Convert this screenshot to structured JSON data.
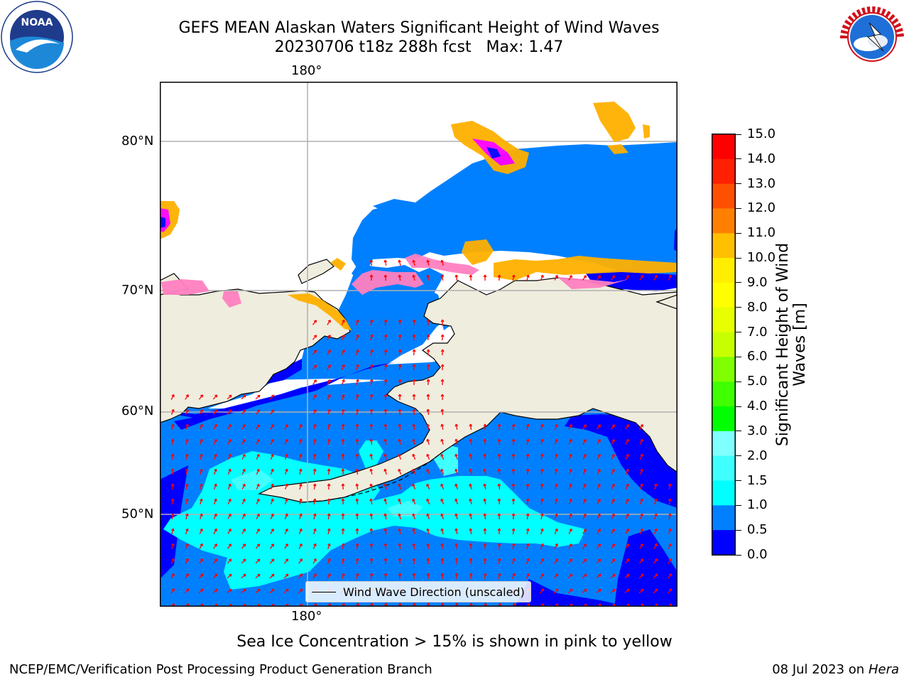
{
  "title": {
    "line1": "GEFS MEAN Alaskan Waters Significant Height of Wind Waves",
    "line2": "20230706 t18z 288h fcst   Max: 1.47"
  },
  "logos": {
    "noaa": {
      "center_text": "NOAA",
      "ring_text": "NATIONAL OCEANIC AND ATMOSPHERIC ADMINISTRATION · U.S. DEPARTMENT OF COMMERCE"
    },
    "nws": {
      "ring_text": "NATIONAL WEATHER SERVICE"
    }
  },
  "map": {
    "top_lon_label": "180°",
    "bottom_lon_label": "180°",
    "lat_labels": [
      "80°N",
      "70°N",
      "60°N",
      "50°N"
    ],
    "legend_label": "Wind Wave Direction (unscaled)",
    "colors": {
      "land": "#efedde",
      "ocean_0_0p5": "#0000ff",
      "ocean_0p5_1": "#0080ff",
      "ocean_1_1p5": "#00ffff",
      "ocean_1p5_2": "#40ffff",
      "arrows": "#ff0000",
      "ice": [
        "#ff00ff",
        "#ff80c0",
        "#ffb000",
        "#ffff00"
      ]
    }
  },
  "colorbar": {
    "label_line1": "Significant Height of Wind",
    "label_line2": "Waves [m]",
    "ticks": [
      "15.0",
      "14.0",
      "13.0",
      "12.0",
      "11.0",
      "10.0",
      "9.0",
      "8.0",
      "7.0",
      "6.0",
      "5.0",
      "4.0",
      "3.0",
      "2.0",
      "1.5",
      "1.0",
      "0.5",
      "0.0"
    ],
    "colors_top_to_bottom": [
      "#ff0000",
      "#ff2000",
      "#ff5000",
      "#ff8000",
      "#ffa000",
      "#ffc000",
      "#ffee00",
      "#ffff00",
      "#e8ff00",
      "#c8ff00",
      "#80ff00",
      "#40ff00",
      "#00ff00",
      "#40ff80",
      "#80ffff",
      "#40ffff",
      "#00ffff",
      "#0080ff",
      "#0000ff"
    ]
  },
  "caption": "Sea Ice Concentration > 15% is shown in pink to yellow",
  "footer": {
    "left": "NCEP/EMC/Verification Post Processing Product Generation Branch",
    "right_date": "08 Jul 2023 on ",
    "right_machine": "Hera"
  }
}
